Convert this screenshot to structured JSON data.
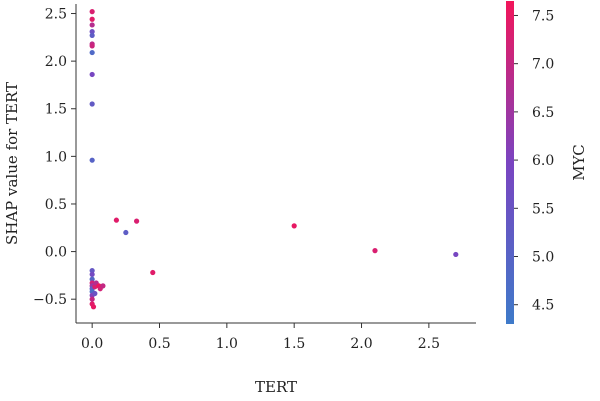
{
  "chart_data": {
    "type": "scatter",
    "title": "",
    "xlabel": "TERT",
    "ylabel": "SHAP value for TERT",
    "xlim": [
      -0.12,
      2.85
    ],
    "ylim": [
      -0.75,
      2.6
    ],
    "xticks": [
      0.0,
      0.5,
      1.0,
      1.5,
      2.0,
      2.5
    ],
    "xtick_labels": [
      "0.0",
      "0.5",
      "1.0",
      "1.5",
      "2.0",
      "2.5"
    ],
    "yticks": [
      -0.5,
      0.0,
      0.5,
      1.0,
      1.5,
      2.0,
      2.5
    ],
    "ytick_labels": [
      "−0.5",
      "0.0",
      "0.5",
      "1.0",
      "1.5",
      "2.0",
      "2.5"
    ],
    "grid": false,
    "colorbar": {
      "label": "MYC",
      "range": [
        4.3,
        7.65
      ],
      "ticks": [
        4.5,
        5.0,
        5.5,
        6.0,
        6.5,
        7.0,
        7.5
      ],
      "tick_labels": [
        "4.5",
        "5.0",
        "5.5",
        "6.0",
        "6.5",
        "7.0",
        "7.5"
      ],
      "color_low": "#3e7ac9",
      "color_mid": "#7a44c1",
      "color_high": "#f2155a"
    },
    "points": [
      {
        "x": 0.0,
        "y": 2.52,
        "c": 7.3
      },
      {
        "x": 0.0,
        "y": 2.44,
        "c": 7.4
      },
      {
        "x": 0.0,
        "y": 2.38,
        "c": 6.8
      },
      {
        "x": 0.0,
        "y": 2.31,
        "c": 5.6
      },
      {
        "x": 0.0,
        "y": 2.27,
        "c": 5.2
      },
      {
        "x": 0.0,
        "y": 2.18,
        "c": 6.9
      },
      {
        "x": 0.0,
        "y": 2.16,
        "c": 7.1
      },
      {
        "x": 0.0,
        "y": 2.09,
        "c": 4.8
      },
      {
        "x": 0.0,
        "y": 1.86,
        "c": 5.9
      },
      {
        "x": 0.0,
        "y": 1.55,
        "c": 5.3
      },
      {
        "x": 0.0,
        "y": 0.96,
        "c": 5.0
      },
      {
        "x": 0.0,
        "y": -0.2,
        "c": 5.4
      },
      {
        "x": 0.0,
        "y": -0.24,
        "c": 5.8
      },
      {
        "x": 0.0,
        "y": -0.29,
        "c": 4.9
      },
      {
        "x": 0.0,
        "y": -0.33,
        "c": 7.2
      },
      {
        "x": 0.0,
        "y": -0.36,
        "c": 6.5
      },
      {
        "x": 0.0,
        "y": -0.39,
        "c": 5.1
      },
      {
        "x": 0.0,
        "y": -0.42,
        "c": 4.7
      },
      {
        "x": 0.0,
        "y": -0.46,
        "c": 6.1
      },
      {
        "x": 0.0,
        "y": -0.5,
        "c": 7.0
      },
      {
        "x": 0.0,
        "y": -0.55,
        "c": 7.4
      },
      {
        "x": 0.01,
        "y": -0.58,
        "c": 7.5
      },
      {
        "x": 0.02,
        "y": -0.37,
        "c": 7.3
      },
      {
        "x": 0.02,
        "y": -0.44,
        "c": 5.5
      },
      {
        "x": 0.03,
        "y": -0.33,
        "c": 6.8
      },
      {
        "x": 0.05,
        "y": -0.36,
        "c": 7.6
      },
      {
        "x": 0.06,
        "y": -0.39,
        "c": 7.2
      },
      {
        "x": 0.08,
        "y": -0.36,
        "c": 7.0
      },
      {
        "x": 0.18,
        "y": 0.33,
        "c": 7.4
      },
      {
        "x": 0.25,
        "y": 0.2,
        "c": 5.2
      },
      {
        "x": 0.33,
        "y": 0.32,
        "c": 7.3
      },
      {
        "x": 0.45,
        "y": -0.22,
        "c": 7.4
      },
      {
        "x": 1.5,
        "y": 0.27,
        "c": 7.5
      },
      {
        "x": 2.1,
        "y": 0.01,
        "c": 7.3
      },
      {
        "x": 2.7,
        "y": -0.03,
        "c": 5.9
      }
    ]
  }
}
